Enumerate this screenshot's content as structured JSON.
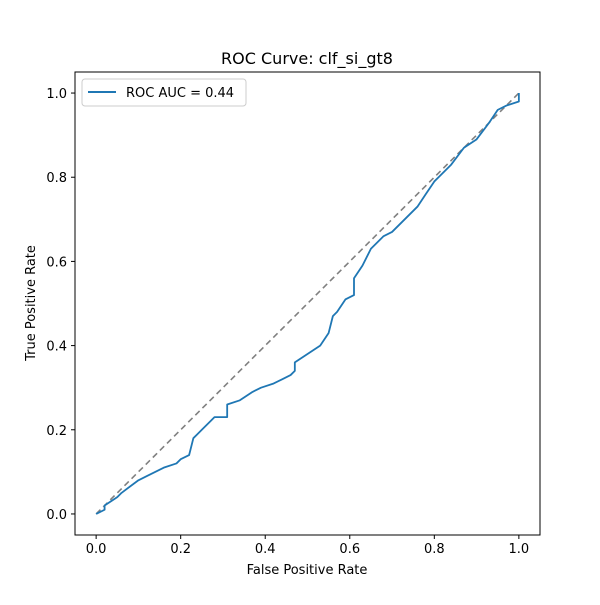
{
  "chart_data": {
    "type": "line",
    "title": "ROC Curve: clf_si_gt8",
    "xlabel": "False Positive Rate",
    "ylabel": "True Positive Rate",
    "xlim": [
      -0.05,
      1.05
    ],
    "ylim": [
      -0.05,
      1.05
    ],
    "xticks": [
      0.0,
      0.2,
      0.4,
      0.6,
      0.8,
      1.0
    ],
    "yticks": [
      0.0,
      0.2,
      0.4,
      0.6,
      0.8,
      1.0
    ],
    "xtick_labels": [
      "0.0",
      "0.2",
      "0.4",
      "0.6",
      "0.8",
      "1.0"
    ],
    "ytick_labels": [
      "0.0",
      "0.2",
      "0.4",
      "0.6",
      "0.8",
      "1.0"
    ],
    "grid": false,
    "legend_position": "top-left",
    "series": [
      {
        "name": "ROC AUC = 0.44",
        "color": "#1f77b4",
        "style": "solid",
        "x": [
          0.0,
          0.02,
          0.02,
          0.05,
          0.06,
          0.1,
          0.12,
          0.16,
          0.19,
          0.2,
          0.22,
          0.23,
          0.24,
          0.25,
          0.27,
          0.28,
          0.31,
          0.31,
          0.34,
          0.37,
          0.39,
          0.42,
          0.44,
          0.46,
          0.47,
          0.47,
          0.5,
          0.53,
          0.55,
          0.56,
          0.57,
          0.59,
          0.61,
          0.61,
          0.63,
          0.65,
          0.68,
          0.7,
          0.73,
          0.76,
          0.78,
          0.8,
          0.81,
          0.84,
          0.87,
          0.9,
          0.93,
          0.95,
          0.97,
          1.0,
          1.0
        ],
        "y": [
          0.0,
          0.01,
          0.02,
          0.04,
          0.05,
          0.08,
          0.09,
          0.11,
          0.12,
          0.13,
          0.14,
          0.18,
          0.19,
          0.2,
          0.22,
          0.23,
          0.23,
          0.26,
          0.27,
          0.29,
          0.3,
          0.31,
          0.32,
          0.33,
          0.34,
          0.36,
          0.38,
          0.4,
          0.43,
          0.47,
          0.48,
          0.51,
          0.52,
          0.56,
          0.59,
          0.63,
          0.66,
          0.67,
          0.7,
          0.73,
          0.76,
          0.79,
          0.8,
          0.83,
          0.87,
          0.89,
          0.93,
          0.96,
          0.97,
          0.98,
          1.0
        ]
      },
      {
        "name": "",
        "color": "#808080",
        "style": "dashed",
        "x": [
          0.0,
          1.0
        ],
        "y": [
          0.0,
          1.0
        ]
      }
    ]
  }
}
